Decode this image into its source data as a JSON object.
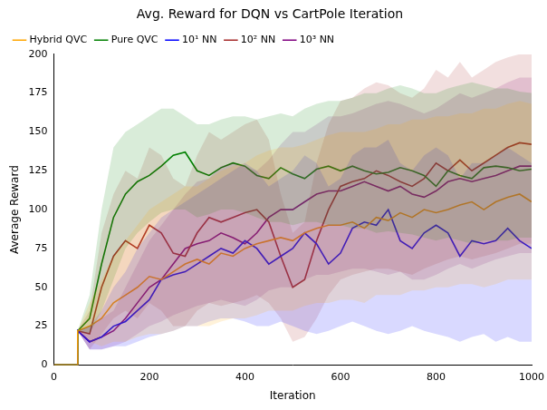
{
  "chart_data": {
    "type": "line",
    "title": "Avg. Reward for DQN vs CartPole Iteration",
    "x_label": "Iteration",
    "y_label": "Average Reward",
    "x": [
      0,
      49,
      50,
      75,
      100,
      125,
      150,
      175,
      200,
      225,
      250,
      275,
      300,
      325,
      350,
      375,
      400,
      425,
      450,
      475,
      500,
      525,
      550,
      575,
      600,
      625,
      650,
      675,
      700,
      725,
      750,
      775,
      800,
      825,
      850,
      875,
      900,
      925,
      950,
      975,
      1000
    ],
    "xlim": [
      0,
      1000
    ],
    "xticks": [
      0,
      200,
      400,
      600,
      800,
      1000
    ],
    "ylim": [
      0,
      200
    ],
    "yticks": [
      0,
      25,
      50,
      75,
      100,
      125,
      150,
      175,
      200
    ],
    "grid": false,
    "legend": "upper left",
    "series": [
      {
        "name": "Hybrid QVC",
        "color": "#ffa500",
        "values": [
          0,
          0,
          22,
          25,
          30,
          40,
          45,
          50,
          57,
          55,
          60,
          65,
          68,
          65,
          72,
          70,
          75,
          78,
          80,
          82,
          80,
          85,
          88,
          90,
          90,
          92,
          88,
          95,
          93,
          98,
          95,
          100,
          98,
          100,
          103,
          105,
          100,
          105,
          108,
          110,
          105
        ],
        "lower": [
          0,
          0,
          22,
          15,
          12,
          15,
          15,
          18,
          20,
          20,
          22,
          25,
          25,
          25,
          28,
          30,
          30,
          32,
          35,
          35,
          35,
          38,
          40,
          40,
          42,
          42,
          40,
          45,
          45,
          45,
          48,
          48,
          50,
          50,
          52,
          52,
          50,
          52,
          55,
          55,
          55
        ],
        "upper": [
          0,
          0,
          22,
          40,
          55,
          70,
          80,
          90,
          100,
          105,
          110,
          115,
          115,
          120,
          125,
          128,
          130,
          135,
          138,
          140,
          140,
          142,
          145,
          148,
          150,
          150,
          150,
          152,
          155,
          155,
          158,
          158,
          160,
          160,
          162,
          162,
          165,
          165,
          168,
          170,
          168
        ]
      },
      {
        "name": "Pure QVC",
        "color": "#008000",
        "values": [
          0,
          0,
          22,
          30,
          65,
          95,
          110,
          118,
          122,
          128,
          135,
          137,
          125,
          122,
          127,
          130,
          128,
          122,
          120,
          127,
          123,
          120,
          126,
          128,
          125,
          128,
          125,
          123,
          124,
          127,
          125,
          122,
          115,
          125,
          122,
          120,
          127,
          128,
          127,
          125,
          126
        ],
        "lower": [
          0,
          0,
          22,
          20,
          35,
          55,
          75,
          85,
          92,
          98,
          100,
          100,
          95,
          97,
          100,
          100,
          98,
          95,
          92,
          92,
          90,
          92,
          92,
          90,
          90,
          88,
          88,
          85,
          86,
          85,
          84,
          82,
          80,
          82,
          80,
          78,
          80,
          80,
          80,
          82,
          82
        ],
        "upper": [
          0,
          0,
          22,
          45,
          100,
          140,
          150,
          155,
          160,
          165,
          165,
          160,
          155,
          155,
          158,
          160,
          160,
          158,
          160,
          162,
          160,
          165,
          168,
          170,
          170,
          172,
          175,
          175,
          178,
          180,
          178,
          175,
          175,
          178,
          180,
          182,
          180,
          178,
          178,
          176,
          175
        ]
      },
      {
        "name": "10¹ NN",
        "color": "#0000ff",
        "values": [
          0,
          0,
          22,
          15,
          18,
          25,
          28,
          35,
          42,
          55,
          58,
          60,
          65,
          70,
          75,
          72,
          80,
          75,
          65,
          70,
          75,
          85,
          78,
          65,
          72,
          88,
          92,
          90,
          100,
          80,
          75,
          85,
          90,
          85,
          70,
          80,
          78,
          80,
          88,
          80,
          75
        ],
        "lower": [
          0,
          0,
          22,
          10,
          10,
          12,
          12,
          15,
          18,
          20,
          22,
          25,
          25,
          28,
          30,
          30,
          28,
          25,
          25,
          28,
          25,
          22,
          20,
          22,
          25,
          28,
          25,
          22,
          20,
          22,
          25,
          22,
          20,
          18,
          15,
          18,
          20,
          15,
          18,
          15,
          15
        ],
        "upper": [
          0,
          0,
          22,
          25,
          35,
          50,
          60,
          75,
          85,
          95,
          100,
          105,
          110,
          115,
          120,
          125,
          130,
          125,
          115,
          120,
          125,
          135,
          130,
          115,
          120,
          135,
          140,
          140,
          145,
          130,
          125,
          135,
          140,
          135,
          120,
          130,
          130,
          135,
          140,
          135,
          130
        ]
      },
      {
        "name": "10² NN",
        "color": "#a52a2a",
        "values": [
          0,
          0,
          22,
          20,
          50,
          70,
          80,
          75,
          90,
          85,
          72,
          70,
          85,
          95,
          92,
          95,
          98,
          100,
          92,
          70,
          50,
          55,
          80,
          100,
          115,
          118,
          120,
          125,
          122,
          118,
          115,
          120,
          130,
          125,
          132,
          125,
          130,
          135,
          140,
          143,
          142
        ],
        "lower": [
          0,
          0,
          22,
          10,
          20,
          30,
          35,
          30,
          40,
          35,
          25,
          25,
          35,
          40,
          38,
          40,
          42,
          45,
          40,
          30,
          15,
          18,
          30,
          45,
          55,
          58,
          60,
          62,
          62,
          60,
          58,
          62,
          65,
          68,
          70,
          68,
          70,
          72,
          75,
          78,
          78
        ],
        "upper": [
          0,
          0,
          22,
          35,
          85,
          110,
          125,
          120,
          140,
          135,
          120,
          115,
          135,
          150,
          145,
          150,
          155,
          158,
          145,
          110,
          85,
          92,
          130,
          155,
          170,
          172,
          178,
          182,
          180,
          175,
          172,
          178,
          190,
          185,
          195,
          185,
          190,
          195,
          198,
          200,
          200
        ]
      },
      {
        "name": "10³ NN",
        "color": "#800080",
        "values": [
          0,
          0,
          22,
          15,
          18,
          22,
          30,
          40,
          50,
          55,
          65,
          75,
          78,
          80,
          85,
          82,
          78,
          85,
          95,
          100,
          100,
          105,
          110,
          112,
          112,
          115,
          118,
          115,
          112,
          115,
          110,
          108,
          112,
          118,
          120,
          118,
          120,
          122,
          125,
          128,
          128
        ],
        "lower": [
          0,
          0,
          22,
          10,
          10,
          12,
          15,
          20,
          25,
          28,
          32,
          35,
          38,
          40,
          42,
          40,
          38,
          42,
          48,
          50,
          50,
          55,
          58,
          58,
          60,
          62,
          62,
          60,
          58,
          60,
          55,
          55,
          58,
          62,
          65,
          62,
          65,
          68,
          70,
          72,
          72
        ],
        "upper": [
          0,
          0,
          22,
          25,
          30,
          35,
          50,
          65,
          80,
          90,
          100,
          110,
          118,
          120,
          128,
          130,
          128,
          125,
          132,
          142,
          150,
          150,
          155,
          160,
          160,
          162,
          165,
          168,
          170,
          168,
          165,
          162,
          165,
          170,
          175,
          172,
          175,
          178,
          182,
          185,
          185
        ]
      }
    ]
  }
}
